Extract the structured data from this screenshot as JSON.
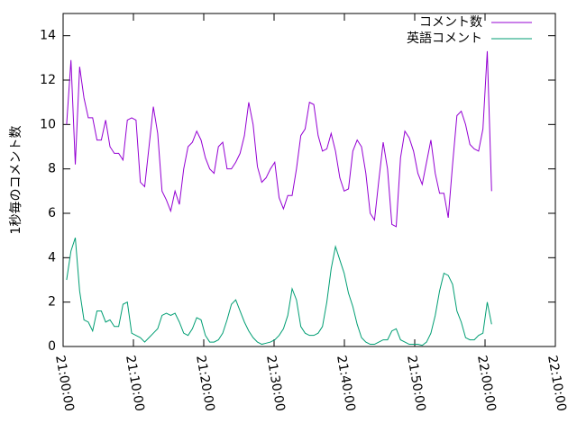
{
  "chart_data": {
    "type": "line",
    "ylabel": "1秒毎のコメント数",
    "x": [
      75630,
      75667,
      75704,
      75741,
      75778,
      75815,
      75852,
      75889,
      75926,
      75963,
      76000,
      76037,
      76074,
      76111,
      76148,
      76185,
      76222,
      76259,
      76296,
      76333,
      76370,
      76407,
      76444,
      76481,
      76518,
      76555,
      76592,
      76629,
      76666,
      76703,
      76740,
      76777,
      76814,
      76851,
      76888,
      76925,
      76962,
      76999,
      77036,
      77073,
      77110,
      77147,
      77184,
      77221,
      77258,
      77295,
      77332,
      77369,
      77406,
      77443,
      77480,
      77517,
      77554,
      77591,
      77628,
      77665,
      77702,
      77739,
      77776,
      77813,
      77850,
      77887,
      77924,
      77961,
      77998,
      78035,
      78072,
      78109,
      78146,
      78183,
      78220,
      78257,
      78294,
      78331,
      78368,
      78405,
      78442,
      78479,
      78516,
      78553,
      78590,
      78627,
      78664,
      78701,
      78738,
      78775,
      78812,
      78849,
      78886,
      78923,
      78960,
      78997,
      79034,
      79071,
      79108,
      79145,
      79182,
      79219,
      79256
    ],
    "series": [
      {
        "name": "コメント数",
        "color": "#9400d3",
        "values": [
          10.0,
          12.9,
          8.2,
          12.6,
          11.2,
          10.3,
          10.3,
          9.3,
          9.3,
          10.2,
          9.0,
          8.7,
          8.7,
          8.4,
          10.2,
          10.3,
          10.2,
          7.4,
          7.2,
          9.0,
          10.8,
          9.6,
          7.0,
          6.6,
          6.1,
          7.0,
          6.4,
          8.0,
          9.0,
          9.2,
          9.7,
          9.3,
          8.5,
          8.0,
          7.8,
          9.0,
          9.2,
          8.0,
          8.0,
          8.3,
          8.7,
          9.5,
          11.0,
          10.0,
          8.1,
          7.4,
          7.6,
          8.0,
          8.3,
          6.7,
          6.2,
          6.8,
          6.8,
          8.0,
          9.5,
          9.8,
          11.0,
          10.9,
          9.5,
          8.8,
          8.9,
          9.6,
          8.8,
          7.6,
          7.0,
          7.1,
          8.8,
          9.3,
          9.0,
          7.8,
          6.0,
          5.7,
          7.5,
          9.2,
          8.0,
          5.5,
          5.4,
          8.5,
          9.7,
          9.4,
          8.8,
          7.8,
          7.3,
          8.3,
          9.3,
          7.8,
          6.9,
          6.9,
          5.8,
          8.2,
          10.4,
          10.6,
          10.0,
          9.1,
          8.9,
          8.8,
          9.8,
          13.3,
          7.0
        ]
      },
      {
        "name": "英語コメント",
        "color": "#009e73",
        "values": [
          3.0,
          4.3,
          4.9,
          2.5,
          1.2,
          1.1,
          0.7,
          1.6,
          1.6,
          1.1,
          1.2,
          0.9,
          0.9,
          1.9,
          2.0,
          0.6,
          0.5,
          0.4,
          0.2,
          0.4,
          0.6,
          0.8,
          1.4,
          1.5,
          1.4,
          1.5,
          1.1,
          0.6,
          0.5,
          0.8,
          1.3,
          1.2,
          0.5,
          0.2,
          0.2,
          0.3,
          0.6,
          1.2,
          1.9,
          2.1,
          1.6,
          1.1,
          0.7,
          0.4,
          0.2,
          0.1,
          0.15,
          0.2,
          0.3,
          0.5,
          0.8,
          1.4,
          2.6,
          2.1,
          0.9,
          0.6,
          0.5,
          0.5,
          0.6,
          0.9,
          2.0,
          3.5,
          4.5,
          3.9,
          3.3,
          2.4,
          1.8,
          1.0,
          0.4,
          0.2,
          0.1,
          0.1,
          0.2,
          0.3,
          0.3,
          0.7,
          0.8,
          0.3,
          0.2,
          0.1,
          0.1,
          0.1,
          0.05,
          0.2,
          0.6,
          1.4,
          2.5,
          3.3,
          3.2,
          2.8,
          1.6,
          1.1,
          0.4,
          0.3,
          0.3,
          0.5,
          0.6,
          2.0,
          1.0
        ]
      }
    ],
    "xlim": [
      75600,
      79800
    ],
    "xticks": [
      {
        "value": 75600,
        "label": "21:00:00"
      },
      {
        "value": 76200,
        "label": "21:10:00"
      },
      {
        "value": 76800,
        "label": "21:20:00"
      },
      {
        "value": 77400,
        "label": "21:30:00"
      },
      {
        "value": 78000,
        "label": "21:40:00"
      },
      {
        "value": 78600,
        "label": "21:50:00"
      },
      {
        "value": 79200,
        "label": "22:00:00"
      },
      {
        "value": 79800,
        "label": "22:10:00"
      }
    ],
    "ylim": [
      0,
      15
    ],
    "yticks": [
      0,
      2,
      4,
      6,
      8,
      10,
      12,
      14
    ],
    "legend": "top-right"
  }
}
